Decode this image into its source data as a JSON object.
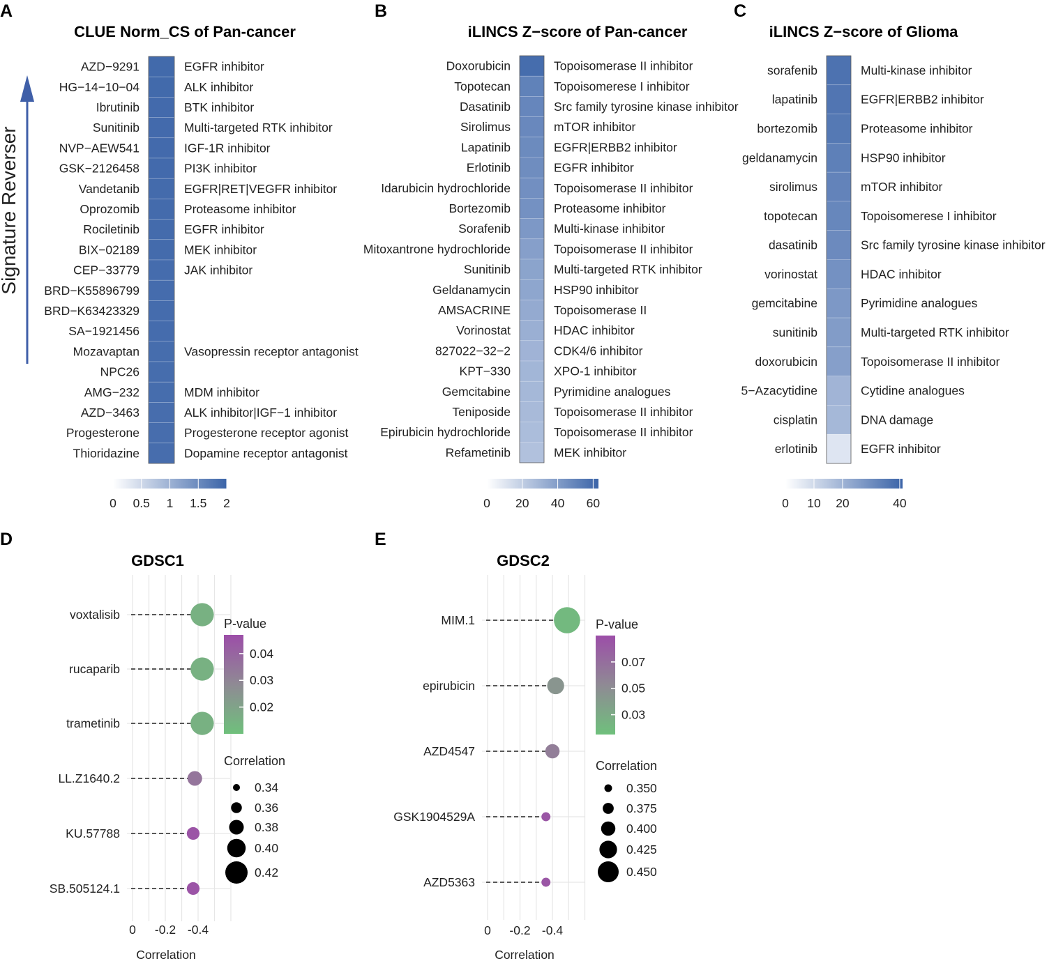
{
  "chart_data": [
    {
      "type": "heatmap",
      "panel": "A",
      "title": "CLUE Norm_CS of Pan-cancer",
      "side_label": "Signature Reverser",
      "drugs": [
        "AZD−9291",
        "HG−14−10−04",
        "Ibrutinib",
        "Sunitinib",
        "NVP−AEW541",
        "GSK−2126458",
        "Vandetanib",
        "Oprozomib",
        "Rociletinib",
        "BIX−02189",
        "CEP−33779",
        "BRD−K55896799",
        "BRD−K63423329",
        "SA−1921456",
        "Mozavaptan",
        "NPC26",
        "AMG−232",
        "AZD−3463",
        "Progesterone",
        "Thioridazine"
      ],
      "moa": [
        "EGFR inhibitor",
        "ALK inhibitor",
        "BTK inhibitor",
        "Multi-targeted RTK inhibitor",
        "IGF-1R inhibitor",
        "PI3K inhibitor",
        "EGFR|RET|VEGFR inhibitor",
        "Proteasome inhibitor",
        "EGFR inhibitor",
        "MEK inhibitor",
        "JAK inhibitor",
        "",
        "",
        "",
        "Vasopressin receptor antagonist",
        "",
        "MDM inhibitor",
        "ALK inhibitor|IGF−1 inhibitor",
        "Progesterone receptor agonist",
        "Dopamine receptor antagonist"
      ],
      "values": [
        1.92,
        1.92,
        1.91,
        1.91,
        1.91,
        1.91,
        1.9,
        1.9,
        1.9,
        1.9,
        1.89,
        1.89,
        1.89,
        1.89,
        1.88,
        1.88,
        1.88,
        1.87,
        1.87,
        1.87
      ],
      "legend": {
        "min": 0,
        "max": 2,
        "ticks": [
          0,
          0.5,
          1,
          1.5,
          2
        ],
        "tick_labels": [
          "0",
          "0.5",
          "1",
          "1.5",
          "2"
        ]
      }
    },
    {
      "type": "heatmap",
      "panel": "B",
      "title": "iLINCS Z−score of Pan-cancer",
      "drugs": [
        "Doxorubicin",
        "Topotecan",
        "Dasatinib",
        "Sirolimus",
        "Lapatinib",
        "Erlotinib",
        "Idarubicin hydrochloride",
        "Bortezomib",
        "Sorafenib",
        "Mitoxantrone hydrochloride",
        "Sunitinib",
        "Geldanamycin",
        "AMSACRINE",
        "Vorinostat",
        "827022−32−2",
        "KPT−330",
        "Gemcitabine",
        "Teniposide",
        "Epirubicin hydrochloride",
        "Refametinib"
      ],
      "moa": [
        "Topoisomerase II inhibitor",
        "Topoisomerese I inhibitor",
        "Src family tyrosine kinase inhibitor",
        "mTOR inhibitor",
        "EGFR|ERBB2 inhibitor",
        "EGFR inhibitor",
        "Topoisomerase II inhibitor",
        "Proteasome inhibitor",
        "Multi-kinase inhibitor",
        "Topoisomerase II inhibitor",
        "Multi-targeted RTK inhibitor",
        "HSP90 inhibitor",
        "Topoisomerase II",
        "HDAC inhibitor",
        "CDK4/6 inhibitor",
        "XPO-1 inhibitor",
        "Pyrimidine analogues",
        "Topoisomerase II inhibitor",
        "Topoisomerase II inhibitor",
        "MEK inhibitor"
      ],
      "values": [
        59,
        50,
        48,
        47,
        46,
        45,
        44,
        43,
        40,
        37,
        35,
        34,
        32,
        30,
        28,
        27,
        26,
        25,
        24,
        22
      ],
      "legend": {
        "min": 0,
        "max": 63,
        "ticks": [
          0,
          20,
          40,
          60
        ],
        "tick_labels": [
          "0",
          "20",
          "40",
          "60"
        ]
      }
    },
    {
      "type": "heatmap",
      "panel": "C",
      "title": "iLINCS Z−score of Glioma",
      "drugs": [
        "sorafenib",
        "lapatinib",
        "bortezomib",
        "geldanamycin",
        "sirolimus",
        "topotecan",
        "dasatinib",
        "vorinostat",
        "gemcitabine",
        "sunitinib",
        "doxorubicin",
        "5−Azacytidine",
        "cisplatin",
        "erlotinib"
      ],
      "moa": [
        "Multi-kinase inhibitor",
        "EGFR|ERBB2 inhibitor",
        "Proteasome inhibitor",
        "HSP90 inhibitor",
        "mTOR inhibitor",
        "Topoisomerese I inhibitor",
        "Src family tyrosine kinase inhibitor",
        "HDAC inhibitor",
        "Pyrimidine analogues",
        "Multi-targeted RTK inhibitor",
        "Topoisomerase II inhibitor",
        "Cytidine analogues",
        "DNA damage",
        "EGFR inhibitor"
      ],
      "values": [
        37,
        36,
        35,
        33,
        32,
        31,
        30,
        28,
        26,
        25,
        24,
        18,
        17,
        4
      ],
      "legend": {
        "min": 0,
        "max": 41,
        "ticks": [
          0,
          10,
          20,
          40
        ],
        "tick_labels": [
          "0",
          "10",
          "20",
          "40"
        ]
      }
    },
    {
      "type": "scatter",
      "panel": "D",
      "title": "GDSC1",
      "xlabel": "Correlation",
      "drugs": [
        "voxtalisib",
        "rucaparib",
        "trametinib",
        "LL.Z1640.2",
        "KU.57788",
        "SB.505124.1"
      ],
      "correlation": [
        -0.425,
        -0.425,
        -0.425,
        -0.38,
        -0.37,
        -0.37
      ],
      "p_value": [
        0.015,
        0.015,
        0.015,
        0.035,
        0.045,
        0.045
      ],
      "x_ticks": [
        0,
        -0.2,
        -0.4
      ],
      "x_tick_labels": [
        "0",
        "-0.2",
        "-0.4"
      ],
      "color_legend": {
        "title": "P-value",
        "min": 0.01,
        "max": 0.047,
        "ticks": [
          0.04,
          0.03,
          0.02
        ],
        "tick_labels": [
          "0.04",
          "0.03",
          "0.02"
        ]
      },
      "size_legend": {
        "title": "Correlation",
        "values": [
          0.34,
          0.36,
          0.38,
          0.4,
          0.42
        ],
        "labels": [
          "0.34",
          "0.36",
          "0.38",
          "0.40",
          "0.42"
        ]
      }
    },
    {
      "type": "scatter",
      "panel": "E",
      "title": "GDSC2",
      "xlabel": "Correlation",
      "drugs": [
        "MIM.1",
        "epirubicin",
        "AZD4547",
        "GSK1904529A",
        "AZD5363"
      ],
      "correlation": [
        -0.49,
        -0.42,
        -0.4,
        -0.36,
        -0.36
      ],
      "p_value": [
        0.02,
        0.045,
        0.06,
        0.085,
        0.085
      ],
      "x_ticks": [
        0,
        -0.2,
        -0.4
      ],
      "x_tick_labels": [
        "0",
        "-0.2",
        "-0.4"
      ],
      "color_legend": {
        "title": "P-value",
        "min": 0.015,
        "max": 0.09,
        "ticks": [
          0.07,
          0.05,
          0.03
        ],
        "tick_labels": [
          "0.07",
          "0.05",
          "0.03"
        ]
      },
      "size_legend": {
        "title": "Correlation",
        "values": [
          0.35,
          0.375,
          0.4,
          0.425,
          0.45
        ],
        "labels": [
          "0.350",
          "0.375",
          "0.400",
          "0.425",
          "0.450"
        ]
      }
    }
  ]
}
